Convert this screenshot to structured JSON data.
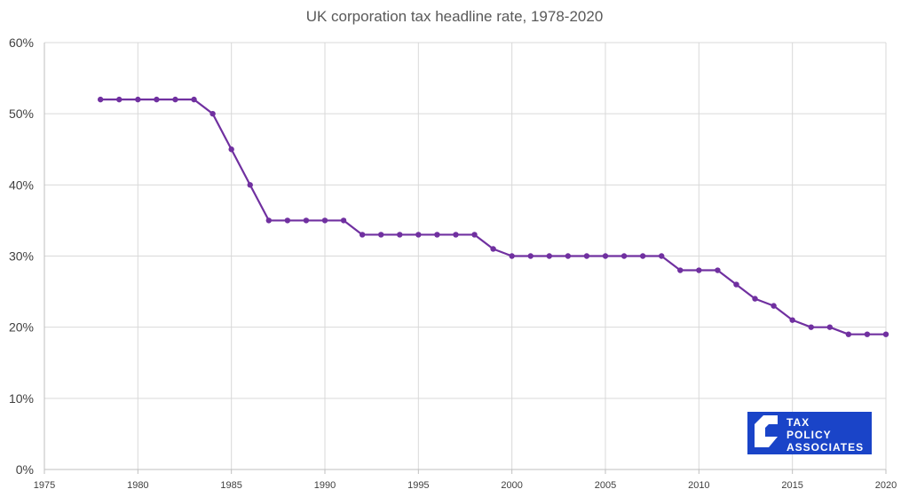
{
  "chart_data": {
    "type": "line",
    "title": "UK corporation tax headline rate, 1978-2020",
    "xlabel": "",
    "ylabel": "",
    "xlim": [
      1975,
      2020
    ],
    "ylim": [
      0,
      0.6
    ],
    "x_ticks": [
      1975,
      1980,
      1985,
      1990,
      1995,
      2000,
      2005,
      2010,
      2015,
      2020
    ],
    "x_tick_labels": [
      "1975",
      "1980",
      "1985",
      "1990",
      "1995",
      "2000",
      "2005",
      "2010",
      "2015",
      "2020"
    ],
    "y_ticks": [
      0,
      0.1,
      0.2,
      0.3,
      0.4,
      0.5,
      0.6
    ],
    "y_tick_labels": [
      "0%",
      "10%",
      "20%",
      "30%",
      "40%",
      "50%",
      "60%"
    ],
    "grid": true,
    "series": [
      {
        "color": "#7030a0",
        "x": [
          1978,
          1979,
          1980,
          1981,
          1982,
          1983,
          1984,
          1985,
          1986,
          1987,
          1988,
          1989,
          1990,
          1991,
          1992,
          1993,
          1994,
          1995,
          1996,
          1997,
          1998,
          1999,
          2000,
          2001,
          2002,
          2003,
          2004,
          2005,
          2006,
          2007,
          2008,
          2009,
          2010,
          2011,
          2012,
          2013,
          2014,
          2015,
          2016,
          2017,
          2018,
          2019,
          2020
        ],
        "y": [
          0.52,
          0.52,
          0.52,
          0.52,
          0.52,
          0.52,
          0.5,
          0.45,
          0.4,
          0.35,
          0.35,
          0.35,
          0.35,
          0.35,
          0.33,
          0.33,
          0.33,
          0.33,
          0.33,
          0.33,
          0.33,
          0.31,
          0.3,
          0.3,
          0.3,
          0.3,
          0.3,
          0.3,
          0.3,
          0.3,
          0.3,
          0.28,
          0.28,
          0.28,
          0.26,
          0.24,
          0.23,
          0.21,
          0.2,
          0.2,
          0.19,
          0.19,
          0.19
        ]
      }
    ]
  },
  "logo": {
    "lines": [
      "TAX",
      "POLICY",
      "ASSOCIATES"
    ],
    "background": "#1a44c8"
  }
}
